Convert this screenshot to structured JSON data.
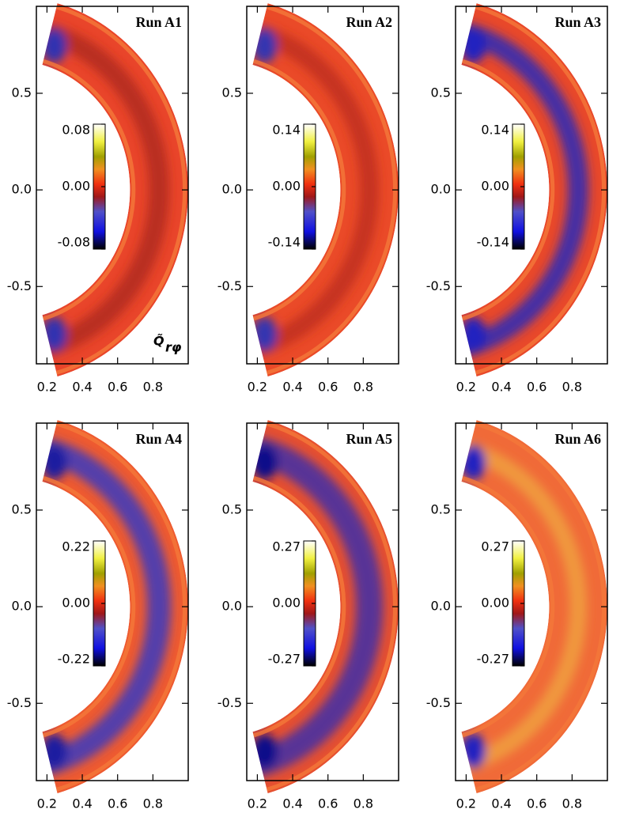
{
  "chart_data": [
    {
      "type": "contour",
      "title": "Run A1",
      "xlim": [
        0.14,
        1.0
      ],
      "ylim": [
        -0.9,
        0.95
      ],
      "xticks": [
        0.2,
        0.4,
        0.6,
        0.8
      ],
      "yticks": [
        -0.5,
        {
          "value": 0,
          "label": "0.0"
        },
        0.5
      ],
      "colorbar": {
        "lim": [
          -0.08,
          0.08
        ],
        "ticks": [
          -0.08,
          {
            "value": 0,
            "label": "0.00"
          },
          0.08
        ]
      },
      "annotation": {
        "symbol": "Q̃",
        "subscript": "rφ"
      }
    },
    {
      "type": "contour",
      "title": "Run A2",
      "xlim": [
        0.14,
        1.0
      ],
      "ylim": [
        -0.9,
        0.95
      ],
      "xticks": [
        0.2,
        0.4,
        0.6,
        0.8
      ],
      "yticks": [
        -0.5,
        {
          "value": 0,
          "label": "0.0"
        },
        0.5
      ],
      "colorbar": {
        "lim": [
          -0.14,
          0.14
        ],
        "ticks": [
          -0.14,
          {
            "value": 0,
            "label": "0.00"
          },
          0.14
        ]
      }
    },
    {
      "type": "contour",
      "title": "Run A3",
      "xlim": [
        0.14,
        1.0
      ],
      "ylim": [
        -0.9,
        0.95
      ],
      "xticks": [
        0.2,
        0.4,
        0.6,
        0.8
      ],
      "yticks": [
        -0.5,
        {
          "value": 0,
          "label": "0.0"
        },
        0.5
      ],
      "colorbar": {
        "lim": [
          -0.14,
          0.14
        ],
        "ticks": [
          -0.14,
          {
            "value": 0,
            "label": "0.00"
          },
          0.14
        ]
      }
    },
    {
      "type": "contour",
      "title": "Run A4",
      "xlim": [
        0.14,
        1.0
      ],
      "ylim": [
        -0.9,
        0.95
      ],
      "xticks": [
        0.2,
        0.4,
        0.6,
        0.8
      ],
      "yticks": [
        -0.5,
        {
          "value": 0,
          "label": "0.0"
        },
        0.5
      ],
      "colorbar": {
        "lim": [
          -0.22,
          0.22
        ],
        "ticks": [
          -0.22,
          {
            "value": 0,
            "label": "0.00"
          },
          0.22
        ]
      }
    },
    {
      "type": "contour",
      "title": "Run A5",
      "xlim": [
        0.14,
        1.0
      ],
      "ylim": [
        -0.9,
        0.95
      ],
      "xticks": [
        0.2,
        0.4,
        0.6,
        0.8
      ],
      "yticks": [
        -0.5,
        {
          "value": 0,
          "label": "0.0"
        },
        0.5
      ],
      "colorbar": {
        "lim": [
          -0.27,
          0.27
        ],
        "ticks": [
          -0.27,
          {
            "value": 0,
            "label": "0.00"
          },
          0.27
        ]
      }
    },
    {
      "type": "contour",
      "title": "Run A6",
      "xlim": [
        0.14,
        1.0
      ],
      "ylim": [
        -0.9,
        0.95
      ],
      "xticks": [
        0.2,
        0.4,
        0.6,
        0.8
      ],
      "yticks": [
        -0.5,
        {
          "value": 0,
          "label": "0.0"
        },
        0.5
      ],
      "colorbar": {
        "lim": [
          -0.27,
          0.27
        ],
        "ticks": [
          -0.27,
          {
            "value": 0,
            "label": "0.00"
          },
          0.27
        ]
      }
    }
  ]
}
